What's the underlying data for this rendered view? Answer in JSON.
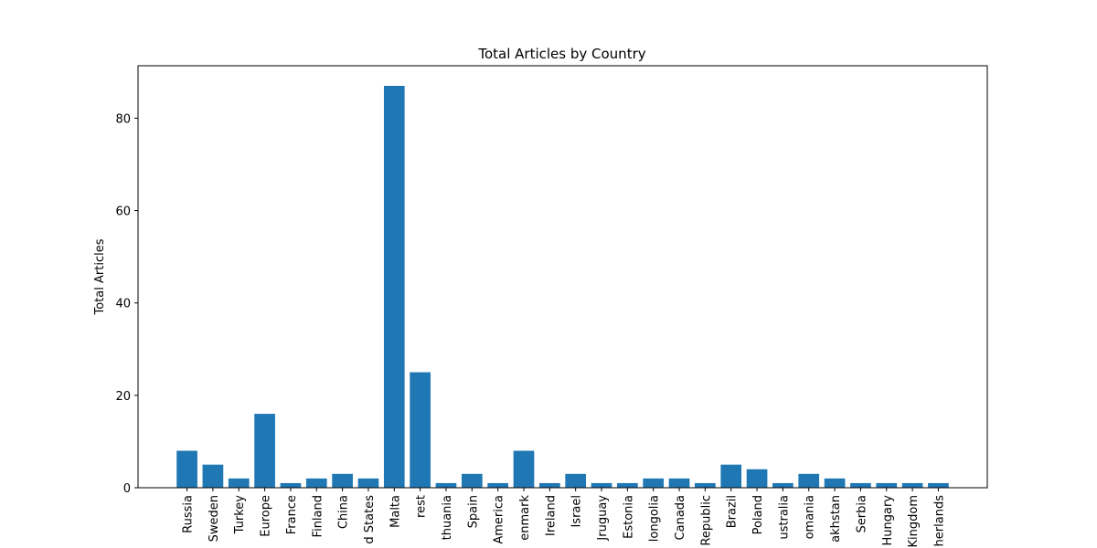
{
  "chart_data": {
    "type": "bar",
    "title": "Total Articles by Country",
    "ylabel": "Total Articles",
    "categories": [
      "Russia",
      "Sweden",
      "Turkey",
      "Europe",
      "France",
      "Finland",
      "China",
      "d States",
      "Malta",
      "rest",
      "thuania",
      "Spain",
      "America",
      "enmark",
      "Ireland",
      "Israel",
      "Jruguay",
      "Estonia",
      "longolia",
      "Canada",
      "Republic",
      "Brazil",
      "Poland",
      "ustralia",
      "omania",
      "akhstan",
      "Serbia",
      "Hungary",
      "Kingdom",
      "herlands"
    ],
    "values": [
      8,
      5,
      2,
      16,
      1,
      2,
      3,
      2,
      87,
      25,
      1,
      3,
      1,
      8,
      1,
      3,
      1,
      1,
      2,
      2,
      1,
      5,
      4,
      1,
      3,
      2,
      1,
      1,
      1,
      1
    ],
    "color": "#1f77b4",
    "ylim": [
      0,
      91.35
    ],
    "yticks": [
      0,
      20,
      40,
      60,
      80
    ],
    "grid": false
  }
}
